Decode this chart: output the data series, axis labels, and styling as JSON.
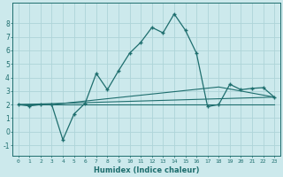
{
  "xlabel": "Humidex (Indice chaleur)",
  "ylabel": "",
  "bg_color": "#cce9ec",
  "grid_color": "#aed4d8",
  "line_color": "#1e6e6e",
  "xlim": [
    -0.5,
    23.5
  ],
  "ylim": [
    -1.8,
    9.5
  ],
  "xticks": [
    0,
    1,
    2,
    3,
    4,
    5,
    6,
    7,
    8,
    9,
    10,
    11,
    12,
    13,
    14,
    15,
    16,
    17,
    18,
    19,
    20,
    21,
    22,
    23
  ],
  "yticks": [
    -1,
    0,
    1,
    2,
    3,
    4,
    5,
    6,
    7,
    8
  ],
  "main_x": [
    0,
    1,
    2,
    3,
    4,
    5,
    6,
    7,
    8,
    9,
    10,
    11,
    12,
    13,
    14,
    15,
    16,
    17,
    18,
    19,
    20,
    21,
    22,
    23
  ],
  "main_y": [
    2.0,
    1.9,
    2.0,
    2.0,
    -0.6,
    1.3,
    2.1,
    4.3,
    3.1,
    4.5,
    5.8,
    6.6,
    7.7,
    7.3,
    8.7,
    7.5,
    5.8,
    1.85,
    2.0,
    3.5,
    3.1,
    3.2,
    3.25,
    2.55
  ],
  "flat_line_x": [
    0,
    23
  ],
  "flat_line_y": [
    2.0,
    2.0
  ],
  "diag_line_x": [
    0,
    23
  ],
  "diag_line_y": [
    2.0,
    2.55
  ],
  "avg_line_x": [
    0,
    3,
    18,
    23
  ],
  "avg_line_y": [
    2.0,
    2.0,
    3.3,
    2.55
  ]
}
